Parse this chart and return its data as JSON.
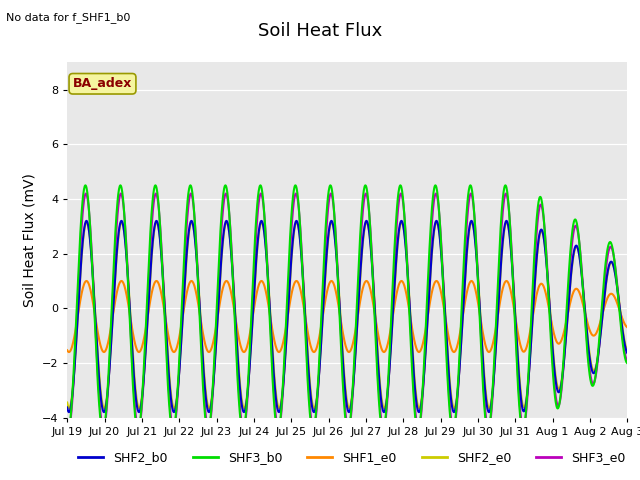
{
  "title": "Soil Heat Flux",
  "ylabel": "Soil Heat Flux (mV)",
  "note": "No data for f_SHF1_b0",
  "legend_label": "BA_adex",
  "ylim": [
    -4,
    9
  ],
  "yticks": [
    -4,
    -2,
    0,
    2,
    4,
    6,
    8
  ],
  "x_tick_labels": [
    "Jul 19",
    "Jul 20",
    "Jul 21",
    "Jul 22",
    "Jul 23",
    "Jul 24",
    "Jul 25",
    "Jul 26",
    "Jul 27",
    "Jul 28",
    "Jul 29",
    "Jul 30",
    "Jul 31",
    "Aug 1",
    "Aug 2",
    "Aug 3"
  ],
  "series": {
    "SHF2_b0": {
      "color": "#0000cc",
      "lw": 1.5
    },
    "SHF3_b0": {
      "color": "#00dd00",
      "lw": 1.5
    },
    "SHF1_e0": {
      "color": "#ff8800",
      "lw": 1.5
    },
    "SHF2_e0": {
      "color": "#cccc00",
      "lw": 1.5
    },
    "SHF3_e0": {
      "color": "#bb00bb",
      "lw": 1.5
    }
  },
  "bg_color": "#e8e8e8",
  "fig_bg_color": "#ffffff",
  "title_fontsize": 13,
  "label_fontsize": 10,
  "tick_fontsize": 8
}
